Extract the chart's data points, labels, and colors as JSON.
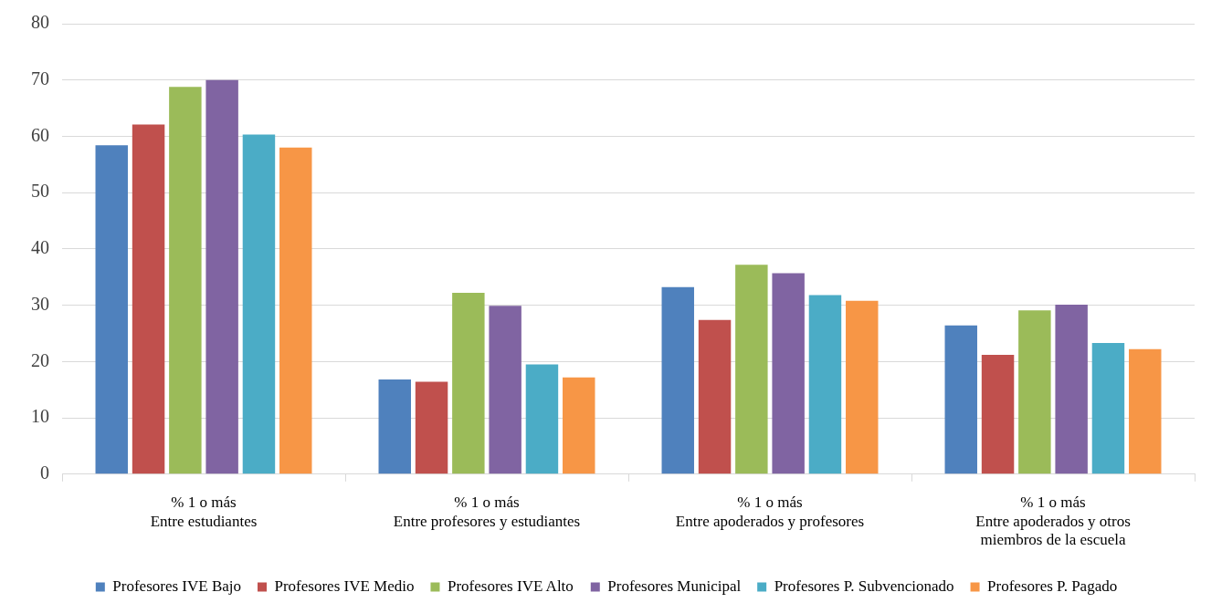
{
  "chart_data": {
    "type": "bar",
    "categories": [
      "% 1 o más\nEntre estudiantes",
      "% 1 o más\nEntre profesores y estudiantes",
      "% 1 o más\nEntre apoderados y profesores",
      "% 1 o más\nEntre apoderados y otros\nmiembros de la escuela"
    ],
    "series": [
      {
        "name": "Profesores IVE Bajo",
        "color": "#4f81bd",
        "values": [
          58.4,
          16.8,
          33.2,
          26.4
        ]
      },
      {
        "name": "Profesores IVE Medio",
        "color": "#c0504d",
        "values": [
          62.1,
          16.4,
          27.4,
          21.2
        ]
      },
      {
        "name": "Profesores IVE Alto",
        "color": "#9bbb59",
        "values": [
          68.8,
          32.2,
          37.2,
          29.1
        ]
      },
      {
        "name": "Profesores Municipal",
        "color": "#8064a2",
        "values": [
          70,
          29.9,
          35.7,
          30.1
        ]
      },
      {
        "name": "Profesores P. Subvencionado",
        "color": "#4bacc6",
        "values": [
          60.3,
          19.5,
          31.8,
          23.3
        ]
      },
      {
        "name": "Profesores P. Pagado",
        "color": "#f79646",
        "values": [
          58,
          17.2,
          30.8,
          22.2
        ]
      }
    ],
    "ylim": [
      0,
      80
    ],
    "yticks": [
      0,
      10,
      20,
      30,
      40,
      50,
      60,
      70,
      80
    ],
    "grid": "y",
    "legend": "bottom"
  }
}
